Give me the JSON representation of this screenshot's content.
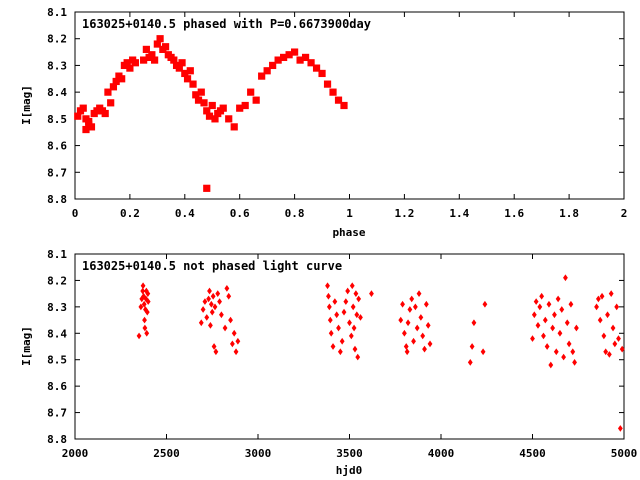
{
  "chart_data": [
    {
      "type": "scatter",
      "title": "163025+0140.5 phased with P=0.6673900day",
      "xlabel": "phase",
      "ylabel": "I[mag]",
      "xlim": [
        0,
        2
      ],
      "ylim": [
        8.8,
        8.1
      ],
      "y_inverted": true,
      "xticks": [
        "0",
        "0.2",
        "0.4",
        "0.6",
        "0.8",
        "1",
        "1.2",
        "1.4",
        "1.6",
        "1.8",
        "2"
      ],
      "yticks": [
        "8.1",
        "8.2",
        "8.3",
        "8.4",
        "8.5",
        "8.6",
        "8.7",
        "8.8"
      ],
      "grid": false,
      "color": "#ff0000",
      "series": [
        {
          "x": [
            0.01,
            0.02,
            0.03,
            0.04,
            0.05,
            0.06,
            0.07,
            0.08,
            0.09,
            0.1,
            0.11,
            0.12,
            0.13,
            0.14,
            0.15,
            0.16,
            0.17,
            0.18,
            0.19,
            0.2,
            0.21,
            0.22,
            0.26,
            0.27,
            0.28,
            0.29,
            0.3,
            0.31,
            0.32,
            0.33,
            0.34,
            0.35,
            0.36,
            0.37,
            0.38,
            0.39,
            0.4,
            0.41,
            0.42,
            0.43,
            0.44,
            0.45,
            0.46,
            0.47,
            0.48,
            0.49,
            0.5,
            0.51,
            0.52,
            0.53,
            0.54,
            0.56,
            0.58,
            0.6,
            0.62,
            0.64,
            0.66,
            0.68,
            0.7,
            0.72,
            0.74,
            0.76,
            0.78,
            0.8,
            0.82,
            0.84,
            0.86,
            0.88,
            0.9,
            0.92,
            0.94,
            0.96,
            0.98,
            0.05,
            0.48,
            0.04,
            0.25
          ],
          "y": [
            8.49,
            8.47,
            8.46,
            8.5,
            8.52,
            8.53,
            8.48,
            8.47,
            8.46,
            8.47,
            8.48,
            8.4,
            8.44,
            8.38,
            8.36,
            8.34,
            8.35,
            8.3,
            8.29,
            8.31,
            8.28,
            8.29,
            8.24,
            8.27,
            8.26,
            8.28,
            8.22,
            8.2,
            8.24,
            8.23,
            8.26,
            8.27,
            8.28,
            8.3,
            8.31,
            8.29,
            8.33,
            8.35,
            8.32,
            8.37,
            8.41,
            8.43,
            8.4,
            8.44,
            8.47,
            8.49,
            8.45,
            8.5,
            8.48,
            8.47,
            8.46,
            8.5,
            8.53,
            8.46,
            8.45,
            8.4,
            8.43,
            8.34,
            8.32,
            8.3,
            8.28,
            8.27,
            8.26,
            8.25,
            8.28,
            8.27,
            8.29,
            8.31,
            8.33,
            8.37,
            8.4,
            8.43,
            8.45,
            8.51,
            8.76,
            8.54,
            8.28
          ]
        }
      ]
    },
    {
      "type": "scatter",
      "title": "163025+0140.5 not phased light curve",
      "xlabel": "hjd0",
      "ylabel": "I[mag]",
      "xlim": [
        2000,
        5000
      ],
      "ylim": [
        8.8,
        8.1
      ],
      "y_inverted": true,
      "xticks": [
        "2000",
        "2500",
        "3000",
        "3500",
        "4000",
        "4500",
        "5000"
      ],
      "yticks": [
        "8.1",
        "8.2",
        "8.3",
        "8.4",
        "8.5",
        "8.6",
        "8.7",
        "8.8"
      ],
      "grid": false,
      "color": "#ff0000",
      "series": [
        {
          "x": [
            2350,
            2360,
            2365,
            2370,
            2372,
            2375,
            2378,
            2380,
            2382,
            2385,
            2388,
            2390,
            2392,
            2395,
            2398,
            2400,
            2690,
            2700,
            2710,
            2720,
            2730,
            2735,
            2740,
            2745,
            2750,
            2755,
            2760,
            2765,
            2770,
            2780,
            2790,
            2800,
            2820,
            2830,
            2840,
            2850,
            2860,
            2870,
            2880,
            2890,
            3380,
            3385,
            3390,
            3395,
            3400,
            3410,
            3420,
            3430,
            3440,
            3450,
            3460,
            3470,
            3480,
            3490,
            3500,
            3510,
            3515,
            3520,
            3525,
            3530,
            3535,
            3540,
            3545,
            3550,
            3560,
            3620,
            3780,
            3790,
            3800,
            3810,
            3815,
            3820,
            3830,
            3840,
            3850,
            3860,
            3870,
            3880,
            3890,
            3900,
            3910,
            3920,
            3930,
            3940,
            4160,
            4170,
            4180,
            4230,
            4240,
            4500,
            4510,
            4520,
            4530,
            4540,
            4550,
            4560,
            4570,
            4580,
            4590,
            4600,
            4610,
            4620,
            4630,
            4640,
            4650,
            4660,
            4670,
            4680,
            4690,
            4700,
            4710,
            4720,
            4730,
            4740,
            4850,
            4860,
            4870,
            4880,
            4890,
            4900,
            4910,
            4920,
            4930,
            4940,
            4950,
            4960,
            4970,
            4980,
            4990
          ],
          "y": [
            8.41,
            8.3,
            8.27,
            8.24,
            8.22,
            8.26,
            8.29,
            8.35,
            8.38,
            8.31,
            8.27,
            8.24,
            8.4,
            8.32,
            8.25,
            8.28,
            8.36,
            8.31,
            8.28,
            8.34,
            8.27,
            8.24,
            8.37,
            8.29,
            8.32,
            8.26,
            8.45,
            8.3,
            8.47,
            8.25,
            8.28,
            8.33,
            8.38,
            8.23,
            8.26,
            8.35,
            8.44,
            8.4,
            8.47,
            8.43,
            8.22,
            8.26,
            8.3,
            8.35,
            8.4,
            8.45,
            8.28,
            8.33,
            8.38,
            8.47,
            8.43,
            8.32,
            8.28,
            8.24,
            8.36,
            8.41,
            8.22,
            8.3,
            8.38,
            8.46,
            8.25,
            8.33,
            8.49,
            8.27,
            8.34,
            8.25,
            8.35,
            8.29,
            8.4,
            8.45,
            8.47,
            8.36,
            8.31,
            8.27,
            8.43,
            8.3,
            8.38,
            8.25,
            8.34,
            8.41,
            8.46,
            8.29,
            8.37,
            8.44,
            8.51,
            8.45,
            8.36,
            8.47,
            8.29,
            8.42,
            8.33,
            8.28,
            8.37,
            8.3,
            8.26,
            8.41,
            8.35,
            8.45,
            8.29,
            8.52,
            8.38,
            8.33,
            8.47,
            8.27,
            8.4,
            8.31,
            8.49,
            8.19,
            8.36,
            8.44,
            8.29,
            8.47,
            8.51,
            8.38,
            8.3,
            8.27,
            8.35,
            8.26,
            8.41,
            8.47,
            8.33,
            8.48,
            8.25,
            8.38,
            8.44,
            8.3,
            8.42,
            8.76,
            8.46
          ]
        }
      ]
    }
  ]
}
